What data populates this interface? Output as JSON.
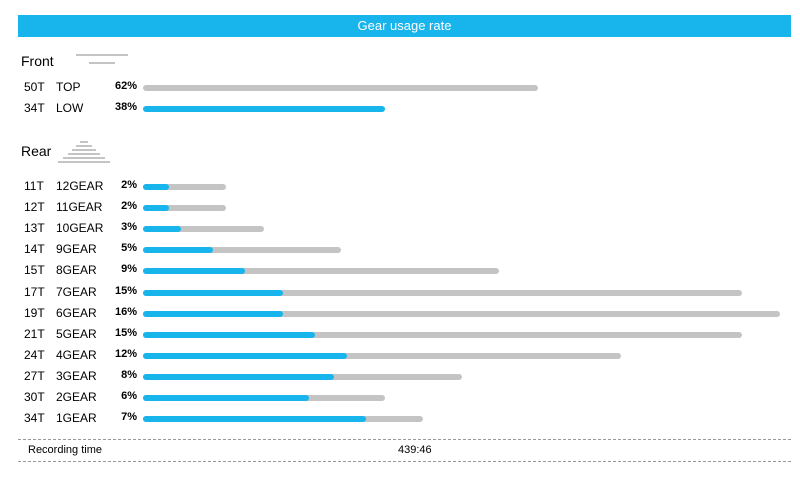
{
  "header": {
    "title": "Gear usage rate"
  },
  "front": {
    "title": "Front",
    "rows": [
      {
        "teeth": "50T",
        "position": "TOP",
        "percent": "62%",
        "usage": 0.62,
        "mark": 0
      },
      {
        "teeth": "34T",
        "position": "LOW",
        "percent": "38%",
        "usage": 0.38,
        "mark": 0.38
      }
    ]
  },
  "rear": {
    "title": "Rear",
    "rows": [
      {
        "teeth": "11T",
        "position": "12GEAR",
        "percent": "2%",
        "usage": 0.02,
        "mark": 0.3
      },
      {
        "teeth": "12T",
        "position": "11GEAR",
        "percent": "2%",
        "usage": 0.02,
        "mark": 0.3
      },
      {
        "teeth": "13T",
        "position": "10GEAR",
        "percent": "3%",
        "usage": 0.03,
        "mark": 0.3
      },
      {
        "teeth": "14T",
        "position": "9GEAR",
        "percent": "5%",
        "usage": 0.05,
        "mark": 0.35
      },
      {
        "teeth": "15T",
        "position": "8GEAR",
        "percent": "9%",
        "usage": 0.09,
        "mark": 0.3
      },
      {
        "teeth": "17T",
        "position": "7GEAR",
        "percent": "15%",
        "usage": 0.15,
        "mark": 0.23
      },
      {
        "teeth": "19T",
        "position": "6GEAR",
        "percent": "16%",
        "usage": 0.16,
        "mark": 0.22
      },
      {
        "teeth": "21T",
        "position": "5GEAR",
        "percent": "15%",
        "usage": 0.15,
        "mark": 0.29
      },
      {
        "teeth": "24T",
        "position": "4GEAR",
        "percent": "12%",
        "usage": 0.12,
        "mark": 0.43
      },
      {
        "teeth": "27T",
        "position": "3GEAR",
        "percent": "8%",
        "usage": 0.08,
        "mark": 0.6
      },
      {
        "teeth": "30T",
        "position": "2GEAR",
        "percent": "6%",
        "usage": 0.06,
        "mark": 0.69
      },
      {
        "teeth": "34T",
        "position": "1GEAR",
        "percent": "7%",
        "usage": 0.07,
        "mark": 0.8
      }
    ]
  },
  "footer": {
    "label": "Recording time",
    "value": "439:46"
  },
  "colors": {
    "accent": "#18b4ec",
    "track": "#c4c4c4",
    "text": "#000000"
  }
}
